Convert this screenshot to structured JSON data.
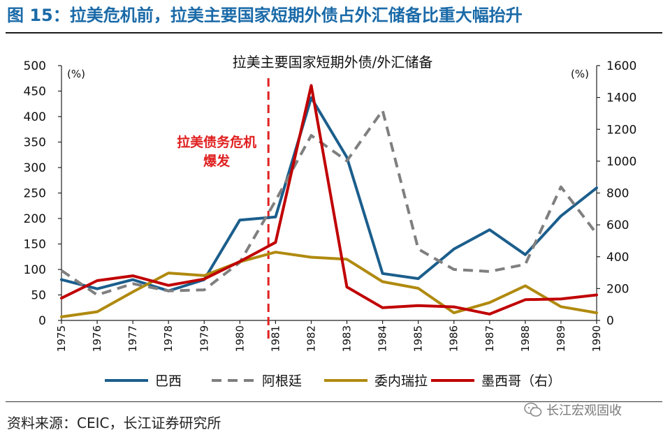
{
  "figure_title": "图 15：拉美危机前，拉美主要国家短期外债占外汇储备比重大幅抬升",
  "source_text": "资料来源：CEIC，长江证券研究所",
  "watermark_text": "长江宏观固收",
  "chart_data": {
    "type": "line",
    "title": "拉美主要国家短期外债/外汇储备",
    "left_axis_unit": "(%)",
    "right_axis_unit": "(%)",
    "y_left_lim": [
      0,
      500
    ],
    "y_left_ticks": [
      "0",
      "50",
      "100",
      "150",
      "200",
      "250",
      "300",
      "350",
      "400",
      "450",
      "500"
    ],
    "y_right_lim": [
      0,
      1600
    ],
    "y_right_ticks": [
      "0",
      "200",
      "400",
      "600",
      "800",
      "1000",
      "1200",
      "1400",
      "1600"
    ],
    "categories": [
      "1975",
      "1976",
      "1977",
      "1978",
      "1979",
      "1980",
      "1981",
      "1982",
      "1983",
      "1984",
      "1985",
      "1986",
      "1987",
      "1988",
      "1989",
      "1990"
    ],
    "annotation": "拉美债务危机\n爆发",
    "crisis_marker_x": 1980.8,
    "grid": false,
    "legend_position": "bottom",
    "series": [
      {
        "name": "巴西",
        "axis": "left",
        "color": "#1b5e8c",
        "dash": false,
        "values": [
          80,
          62,
          80,
          58,
          80,
          197,
          203,
          437,
          320,
          92,
          82,
          140,
          178,
          129,
          205,
          260
        ]
      },
      {
        "name": "阿根廷",
        "axis": "left",
        "color": "#7f7f7f",
        "dash": true,
        "values": [
          98,
          50,
          72,
          58,
          60,
          114,
          235,
          363,
          313,
          412,
          140,
          100,
          96,
          110,
          262,
          170
        ]
      },
      {
        "name": "委内瑞拉",
        "axis": "left",
        "color": "#b08a0f",
        "dash": false,
        "values": [
          7,
          17,
          56,
          93,
          88,
          115,
          134,
          124,
          120,
          76,
          63,
          15,
          35,
          68,
          27,
          15
        ]
      },
      {
        "name": "墨西哥（右）",
        "axis": "right",
        "color": "#c00000",
        "dash": false,
        "values": [
          140,
          250,
          280,
          220,
          260,
          370,
          490,
          1475,
          210,
          80,
          93,
          85,
          40,
          130,
          135,
          160
        ]
      }
    ]
  }
}
